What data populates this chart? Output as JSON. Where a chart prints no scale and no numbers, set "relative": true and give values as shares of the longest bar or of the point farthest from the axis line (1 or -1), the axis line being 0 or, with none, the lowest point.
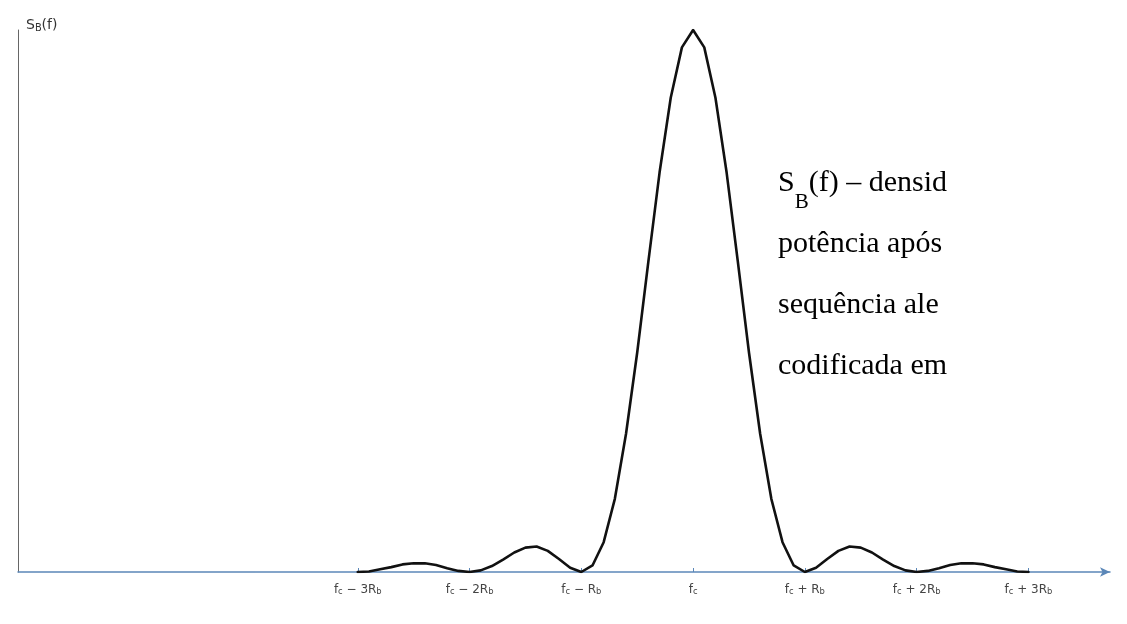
{
  "chart_data": {
    "type": "line",
    "relative": true,
    "ylabel": "S$_{B}$(f)",
    "color": "#111111",
    "marker": "none",
    "line_style": "solid",
    "x": [
      -3,
      -2.9,
      -2.8,
      -2.7,
      -2.6,
      -2.5,
      -2.4,
      -2.3,
      -2.2,
      -2.1,
      -2,
      -1.9,
      -1.8,
      -1.7,
      -1.6,
      -1.5,
      -1.4,
      -1.3,
      -1.2,
      -1.1,
      -1,
      -0.9,
      -0.8,
      -0.7,
      -0.6,
      -0.5,
      -0.4,
      -0.3,
      -0.2,
      -0.1,
      0,
      0.1,
      0.2,
      0.3,
      0.4,
      0.5,
      0.6,
      0.7,
      0.8,
      0.9,
      1,
      1.1,
      1.2,
      1.3,
      1.4,
      1.5,
      1.6,
      1.7,
      1.8,
      1.9,
      2,
      2.1,
      2.2,
      2.3,
      2.4,
      2.5,
      2.6,
      2.7,
      2.8,
      2.9,
      3
    ],
    "values": [
      0,
      0.001,
      0.005,
      0.009,
      0.014,
      0.016,
      0.016,
      0.013,
      0.007,
      0.002,
      0,
      0.003,
      0.011,
      0.023,
      0.036,
      0.045,
      0.047,
      0.039,
      0.024,
      0.008,
      0,
      0.012,
      0.055,
      0.135,
      0.255,
      0.405,
      0.573,
      0.737,
      0.875,
      0.968,
      1,
      0.968,
      0.875,
      0.737,
      0.573,
      0.405,
      0.255,
      0.135,
      0.055,
      0.012,
      0,
      0.008,
      0.024,
      0.039,
      0.047,
      0.045,
      0.036,
      0.023,
      0.011,
      0.003,
      0,
      0.002,
      0.007,
      0.013,
      0.016,
      0.016,
      0.014,
      0.009,
      0.005,
      0.001,
      0
    ],
    "xlim": [
      -6.04,
      3.73
    ],
    "xticks": [
      {
        "value": -3,
        "label": "f$_{c}$ − 3R$_{b}$"
      },
      {
        "value": -2,
        "label": "f$_{c}$ − 2R$_{b}$"
      },
      {
        "value": -1,
        "label": "f$_{c}$ − R$_{b}$"
      },
      {
        "value": 0,
        "label": "f$_{c}$"
      },
      {
        "value": 1,
        "label": "f$_{c}$ + R$_{b}$"
      },
      {
        "value": 2,
        "label": "f$_{c}$ + 2R$_{b}$"
      },
      {
        "value": 3,
        "label": "f$_{c}$ + 3R$_{b}$"
      }
    ],
    "annotations": [
      "S$_{B}$(f) – densid\npotência após\nsequência ale\ncodificada em"
    ]
  }
}
